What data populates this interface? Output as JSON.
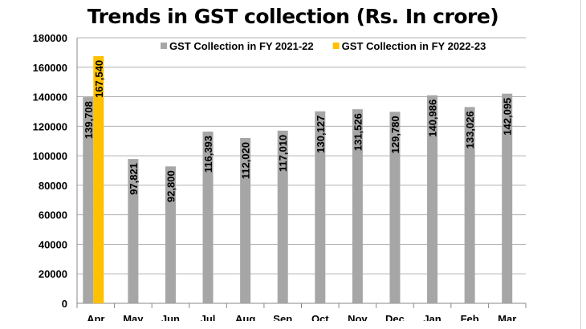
{
  "chart_data": {
    "type": "bar",
    "title": "Trends in GST collection (Rs. In crore)",
    "categories": [
      "Apr",
      "May",
      "Jun",
      "Jul",
      "Aug",
      "Sep",
      "Oct",
      "Nov",
      "Dec",
      "Jan",
      "Feb",
      "Mar"
    ],
    "series": [
      {
        "name": "GST Collection in FY 2021-22",
        "color": "#a6a6a6",
        "values": [
          139708,
          97821,
          92800,
          116393,
          112020,
          117010,
          130127,
          131526,
          129780,
          140986,
          133026,
          142095
        ],
        "labels": [
          "139,708",
          "97,821",
          "92,800",
          "116,393",
          "112,020",
          "117,010",
          "130,127",
          "131,526",
          "129,780",
          "140,986",
          "133,026",
          "142,095"
        ]
      },
      {
        "name": "GST Collection in FY 2022-23",
        "color": "#ffc000",
        "values": [
          167540,
          null,
          null,
          null,
          null,
          null,
          null,
          null,
          null,
          null,
          null,
          null
        ],
        "labels": [
          "167,540"
        ]
      }
    ],
    "ylim": [
      0,
      180000
    ],
    "yticks": [
      "0",
      "20000",
      "40000",
      "60000",
      "80000",
      "100000",
      "120000",
      "140000",
      "160000",
      "180000"
    ],
    "grid": true,
    "legend": "top-right"
  }
}
